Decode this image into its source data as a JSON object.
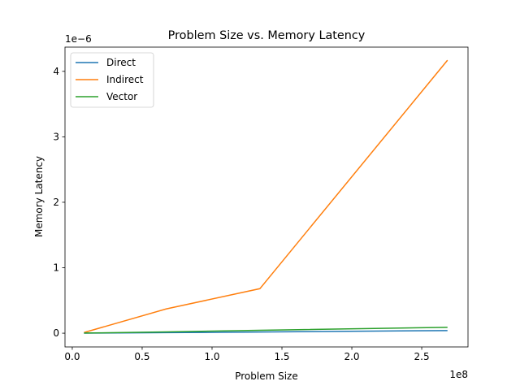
{
  "chart_data": {
    "type": "line",
    "title": "Problem Size vs. Memory Latency",
    "x_label": "Problem Size",
    "y_label": "Memory Latency",
    "x_offset_label": "1e8",
    "y_offset_label": "1e−6",
    "x": [
      8388608,
      67108864,
      134217728,
      268435456
    ],
    "series": [
      {
        "name": "Direct",
        "color": "#1f77b4",
        "values": [
          1e-09,
          8e-09,
          1.8e-08,
          4e-08
        ]
      },
      {
        "name": "Indirect",
        "color": "#ff7f0e",
        "values": [
          1e-08,
          3.7e-07,
          6.8e-07,
          4.17e-06
        ]
      },
      {
        "name": "Vector",
        "color": "#2ca02c",
        "values": [
          2e-09,
          2e-08,
          4.5e-08,
          9e-08
        ]
      }
    ],
    "xlim": [
      -5200000,
      283100000
    ],
    "ylim": [
      -2.1e-07,
      4.37e-06
    ],
    "xticks": [
      {
        "value": 0,
        "label": "0.0"
      },
      {
        "value": 50000000,
        "label": "0.5"
      },
      {
        "value": 100000000,
        "label": "1.0"
      },
      {
        "value": 150000000,
        "label": "1.5"
      },
      {
        "value": 200000000,
        "label": "2.0"
      },
      {
        "value": 250000000,
        "label": "2.5"
      }
    ],
    "yticks": [
      0,
      {
        "value": 1e-06,
        "label": "1"
      },
      {
        "value": 2e-06,
        "label": "2"
      },
      {
        "value": 3e-06,
        "label": "3"
      },
      {
        "value": 4e-06,
        "label": "4"
      }
    ],
    "legend": "upper left",
    "grid": false
  }
}
